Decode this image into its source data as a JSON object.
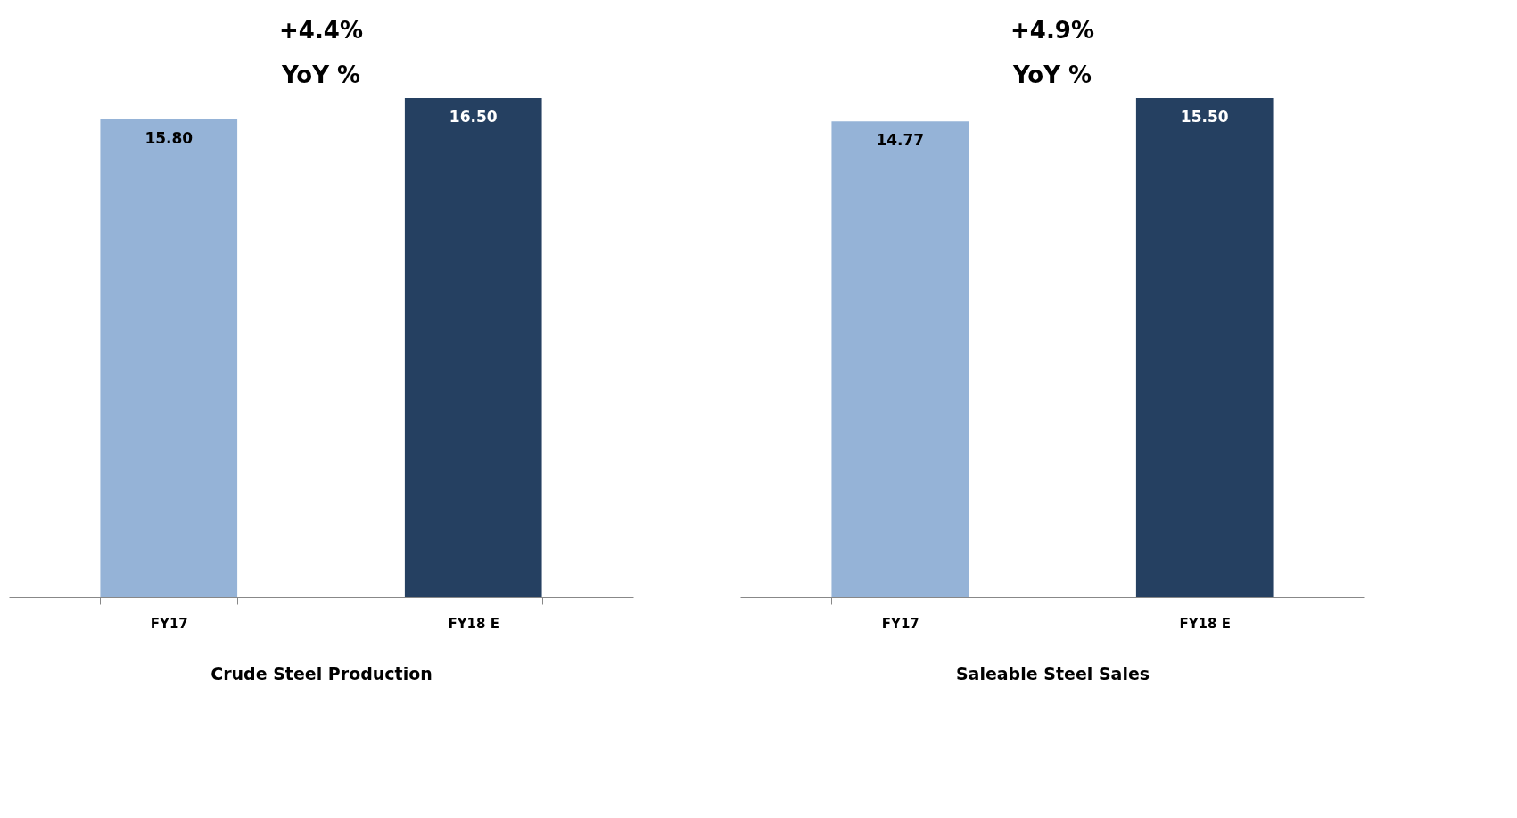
{
  "chart_data": [
    {
      "type": "bar",
      "xlabel": "Crude Steel Production",
      "categories": [
        "FY17",
        "FY18 E"
      ],
      "values": [
        15.8,
        16.5
      ],
      "value_labels": [
        "15.80",
        "16.50"
      ],
      "colors": [
        "#95b3d7",
        "#254061"
      ],
      "annotations": [
        "+4.4%",
        "YoY %"
      ]
    },
    {
      "type": "bar",
      "xlabel": "Saleable Steel Sales",
      "categories": [
        "FY17",
        "FY18 E"
      ],
      "values": [
        14.77,
        15.5
      ],
      "value_labels": [
        "14.77",
        "15.50"
      ],
      "colors": [
        "#95b3d7",
        "#254061"
      ],
      "annotations": [
        "+4.9%",
        "YoY %"
      ]
    }
  ]
}
